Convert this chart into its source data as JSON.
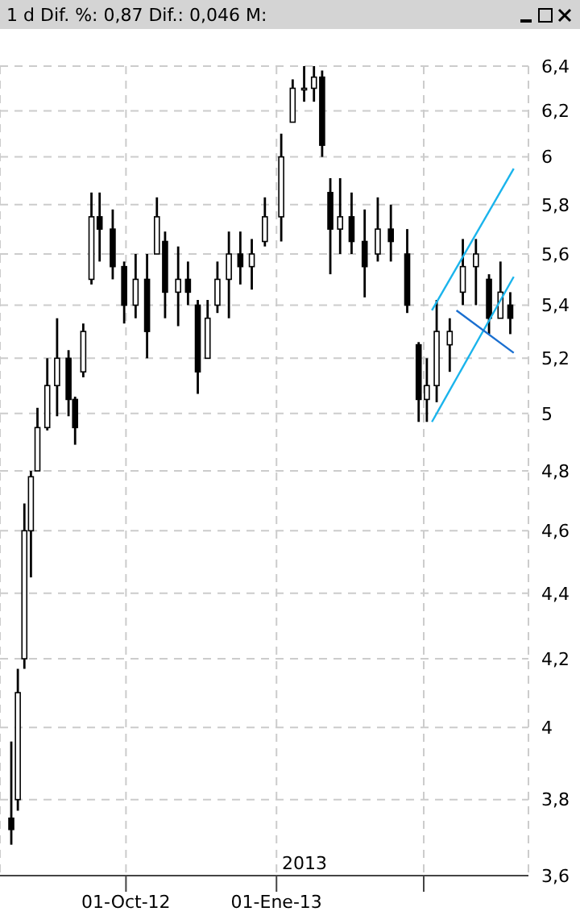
{
  "chart_data": {
    "type": "candlestick",
    "title": "1 d Dif. %: 0,87 Dif.: 0,046 M:",
    "color": "#000000",
    "x": [
      "2012-07-23",
      "2012-07-27",
      "2012-07-31",
      "2012-08-04",
      "2012-08-08",
      "2012-08-14",
      "2012-08-20",
      "2012-08-27",
      "2012-08-31",
      "2012-09-05",
      "2012-09-10",
      "2012-09-15",
      "2012-09-23",
      "2012-09-30",
      "2012-10-07",
      "2012-10-14",
      "2012-10-20",
      "2012-10-25",
      "2012-11-02",
      "2012-11-08",
      "2012-11-14",
      "2012-11-20",
      "2012-11-26",
      "2012-12-03",
      "2012-12-10",
      "2012-12-17",
      "2012-12-25",
      "2013-01-04",
      "2013-01-11",
      "2013-01-18",
      "2013-01-24",
      "2013-01-29",
      "2013-02-03",
      "2013-02-09",
      "2013-02-16",
      "2013-02-24",
      "2013-03-04",
      "2013-03-12",
      "2013-03-22",
      "2013-03-29",
      "2013-04-03",
      "2013-04-09",
      "2013-04-17",
      "2013-04-25",
      "2013-05-03",
      "2013-05-11",
      "2013-05-18",
      "2013-05-24"
    ],
    "ohlc": [
      [
        3.75,
        3.96,
        3.68,
        3.72
      ],
      [
        3.8,
        4.17,
        3.77,
        4.1
      ],
      [
        4.2,
        4.69,
        4.17,
        4.6
      ],
      [
        4.6,
        4.8,
        4.45,
        4.78
      ],
      [
        4.8,
        5.02,
        4.8,
        4.95
      ],
      [
        4.95,
        5.2,
        4.94,
        5.1
      ],
      [
        5.1,
        5.35,
        4.99,
        5.2
      ],
      [
        5.2,
        5.23,
        4.99,
        5.05
      ],
      [
        5.05,
        5.06,
        4.89,
        4.95
      ],
      [
        5.15,
        5.33,
        5.13,
        5.3
      ],
      [
        5.5,
        5.85,
        5.48,
        5.75
      ],
      [
        5.75,
        5.85,
        5.57,
        5.7
      ],
      [
        5.7,
        5.78,
        5.5,
        5.55
      ],
      [
        5.55,
        5.57,
        5.33,
        5.4
      ],
      [
        5.4,
        5.6,
        5.35,
        5.5
      ],
      [
        5.5,
        5.6,
        5.2,
        5.3
      ],
      [
        5.6,
        5.83,
        5.6,
        5.75
      ],
      [
        5.65,
        5.69,
        5.35,
        5.45
      ],
      [
        5.45,
        5.63,
        5.32,
        5.5
      ],
      [
        5.5,
        5.57,
        5.4,
        5.45
      ],
      [
        5.4,
        5.42,
        5.07,
        5.15
      ],
      [
        5.2,
        5.42,
        5.2,
        5.35
      ],
      [
        5.4,
        5.57,
        5.37,
        5.5
      ],
      [
        5.5,
        5.69,
        5.35,
        5.6
      ],
      [
        5.6,
        5.69,
        5.48,
        5.55
      ],
      [
        5.55,
        5.66,
        5.46,
        5.6
      ],
      [
        5.65,
        5.83,
        5.63,
        5.75
      ],
      [
        5.75,
        6.1,
        5.65,
        6.0
      ],
      [
        6.15,
        6.34,
        6.15,
        6.3
      ],
      [
        6.3,
        6.4,
        6.24,
        6.3
      ],
      [
        6.3,
        6.4,
        6.24,
        6.35
      ],
      [
        6.35,
        6.38,
        6.0,
        6.05
      ],
      [
        5.85,
        5.91,
        5.52,
        5.7
      ],
      [
        5.7,
        5.91,
        5.6,
        5.75
      ],
      [
        5.75,
        5.85,
        5.6,
        5.65
      ],
      [
        5.65,
        5.78,
        5.43,
        5.55
      ],
      [
        5.6,
        5.83,
        5.57,
        5.7
      ],
      [
        5.7,
        5.8,
        5.57,
        5.65
      ],
      [
        5.6,
        5.7,
        5.37,
        5.4
      ],
      [
        5.25,
        5.26,
        4.97,
        5.05
      ],
      [
        5.05,
        5.2,
        4.97,
        5.1
      ],
      [
        5.1,
        5.42,
        5.04,
        5.3
      ],
      [
        5.25,
        5.35,
        5.15,
        5.3
      ],
      [
        5.45,
        5.66,
        5.4,
        5.55
      ],
      [
        5.55,
        5.66,
        5.4,
        5.6
      ],
      [
        5.5,
        5.52,
        5.29,
        5.35
      ],
      [
        5.35,
        5.57,
        5.35,
        5.45
      ],
      [
        5.4,
        5.45,
        5.29,
        5.35
      ]
    ],
    "series": [
      {
        "type": "line",
        "color": "#1ab4ec",
        "x": [
          "2013-04-06",
          "2013-05-26"
        ],
        "values": [
          5.38,
          5.95
        ]
      },
      {
        "type": "line",
        "color": "#1ab4ec",
        "x": [
          "2013-04-06",
          "2013-05-26"
        ],
        "values": [
          4.97,
          5.51
        ]
      },
      {
        "type": "line",
        "color": "#1a6fd0",
        "x": [
          "2013-04-21",
          "2013-05-26"
        ],
        "values": [
          5.38,
          5.22
        ]
      }
    ],
    "xlim": [
      "2012-07-16",
      "2013-06-04"
    ],
    "xticks": [
      {
        "value": "2012-10-01",
        "label": "01-Oct-12"
      },
      {
        "value": "2013-01-01",
        "label": "01-Ene-13"
      },
      {
        "value": "2013-04-01",
        "label": null
      }
    ],
    "ylim": [
      3.6,
      6.4
    ],
    "yticks": [
      {
        "value": 3.6,
        "label": "3,6"
      },
      {
        "value": 3.8,
        "label": "3,8"
      },
      4,
      {
        "value": 4.2,
        "label": "4,2"
      },
      {
        "value": 4.4,
        "label": "4,4"
      },
      {
        "value": 4.6,
        "label": "4,6"
      },
      {
        "value": 4.8,
        "label": "4,8"
      },
      5,
      {
        "value": 5.2,
        "label": "5,2"
      },
      {
        "value": 5.4,
        "label": "5,4"
      },
      {
        "value": 5.6,
        "label": "5,6"
      },
      {
        "value": 5.8,
        "label": "5,8"
      },
      6,
      {
        "value": 6.2,
        "label": "6,2"
      },
      {
        "value": 6.4,
        "label": "6,4"
      }
    ],
    "log": true,
    "grid": true,
    "annotations": [
      "2013"
    ]
  }
}
